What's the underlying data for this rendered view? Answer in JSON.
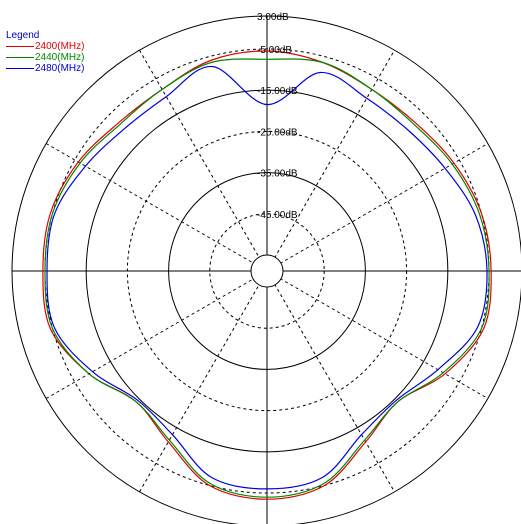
{
  "chart_data": {
    "type": "polar",
    "title": "",
    "legend": {
      "title": "Legend",
      "position": "top-left",
      "entries": [
        {
          "label": "2400(MHz)",
          "color": "#dd0000"
        },
        {
          "label": "2440(MHz)",
          "color": "#008800"
        },
        {
          "label": "2480(MHz)",
          "color": "#0000dd"
        }
      ]
    },
    "radial_unit": "dB",
    "radial_range": [
      -55,
      3
    ],
    "rings_solid": [
      3,
      -15,
      -35
    ],
    "rings_dashed": [
      -5,
      -25,
      -45
    ],
    "ring_labels": [
      "3.00dB",
      "-5.00dB",
      "-15.00dB",
      "-25.00dB",
      "-35.00dB",
      "-45.00dB"
    ],
    "angle_grid_step_deg": 30,
    "grid": true,
    "series": [
      {
        "name": "2400(MHz)",
        "color": "#dd0000",
        "angles_deg": [
          0,
          15,
          30,
          45,
          60,
          75,
          90,
          105,
          120,
          135,
          150,
          165,
          180,
          195,
          210,
          225,
          240,
          255,
          270,
          285,
          300,
          315,
          330,
          345
        ],
        "values_db": [
          -5.5,
          -6.5,
          -8.0,
          -8.0,
          -6.5,
          -5.0,
          -4.5,
          -4.5,
          -9.0,
          -14.0,
          -11.0,
          -5.0,
          -3.5,
          -5.0,
          -11.0,
          -14.0,
          -9.0,
          -4.5,
          -4.5,
          -4.5,
          -6.0,
          -8.0,
          -8.0,
          -6.0
        ]
      },
      {
        "name": "2440(MHz)",
        "color": "#008800",
        "angles_deg": [
          0,
          15,
          30,
          45,
          60,
          75,
          90,
          105,
          120,
          135,
          150,
          165,
          180,
          195,
          210,
          225,
          240,
          255,
          270,
          285,
          300,
          315,
          330,
          345
        ],
        "values_db": [
          -7.5,
          -6.5,
          -8.0,
          -8.5,
          -7.0,
          -5.5,
          -5.0,
          -5.0,
          -9.5,
          -14.0,
          -11.5,
          -5.5,
          -4.0,
          -5.5,
          -11.5,
          -14.0,
          -9.0,
          -5.0,
          -5.0,
          -5.0,
          -6.5,
          -8.5,
          -8.0,
          -6.5
        ]
      },
      {
        "name": "2480(MHz)",
        "color": "#0000dd",
        "angles_deg": [
          0,
          15,
          30,
          45,
          60,
          75,
          90,
          105,
          120,
          135,
          150,
          165,
          180,
          195,
          210,
          225,
          240,
          255,
          270,
          285,
          300,
          315,
          330,
          345
        ],
        "values_db": [
          -18.5,
          -9.0,
          -10.5,
          -10.5,
          -9.0,
          -6.5,
          -5.5,
          -6.0,
          -11.0,
          -14.5,
          -13.0,
          -7.0,
          -6.0,
          -7.0,
          -13.0,
          -14.5,
          -10.0,
          -5.5,
          -5.5,
          -5.5,
          -8.0,
          -10.0,
          -10.0,
          -7.5
        ]
      }
    ]
  }
}
